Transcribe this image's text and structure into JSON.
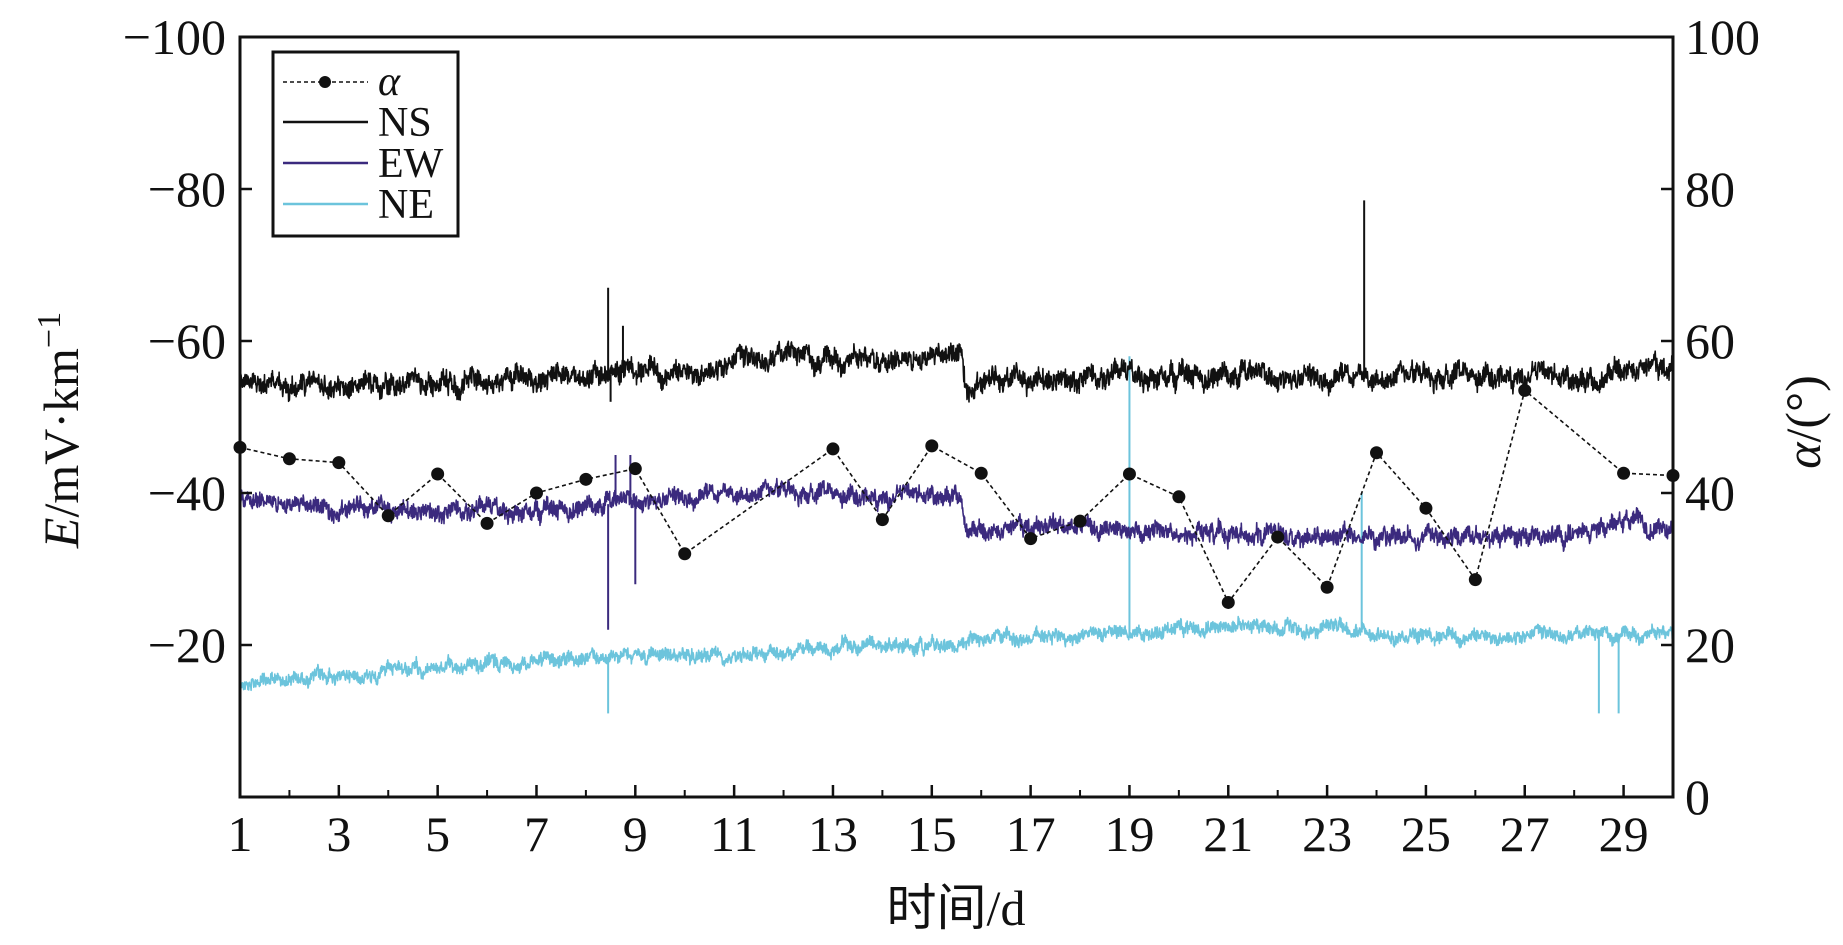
{
  "chart_data": {
    "type": "line",
    "title": "",
    "xlabel": "时间/d",
    "ylabel_left_italic": "E",
    "ylabel_left_rest": "/mV·km",
    "ylabel_left_sup": "−1",
    "ylabel_right_italic": "α",
    "ylabel_right_rest": "/(°)",
    "xlim": [
      1,
      30
    ],
    "ylim_left": [
      -100,
      0
    ],
    "left_axis_inverted": true,
    "ylim_right": [
      0,
      100
    ],
    "x_ticks": [
      1,
      3,
      5,
      7,
      9,
      11,
      13,
      15,
      17,
      19,
      21,
      23,
      25,
      27,
      29
    ],
    "x_tick_labels": [
      "1",
      "3",
      "5",
      "7",
      "9",
      "11",
      "13",
      "15",
      "17",
      "19",
      "21",
      "23",
      "25",
      "27",
      "29"
    ],
    "y_left_ticks": [
      -100,
      -80,
      -60,
      -40,
      -20
    ],
    "y_left_tick_labels": [
      "−100",
      "−80",
      "−60",
      "−40",
      "−20"
    ],
    "y_right_ticks": [
      0,
      20,
      40,
      60,
      80,
      100
    ],
    "y_right_tick_labels": [
      "0",
      "20",
      "40",
      "60",
      "80",
      "100"
    ],
    "grid": false,
    "legend_position": "top-left",
    "series": [
      {
        "name": "α",
        "axis": "right",
        "color": "#111111",
        "marker": "circle",
        "points": [
          [
            1,
            46
          ],
          [
            2,
            44.5
          ],
          [
            3,
            44
          ],
          [
            4,
            37
          ],
          [
            5,
            42.5
          ],
          [
            6,
            36
          ],
          [
            7,
            40
          ],
          [
            8,
            41.8
          ],
          [
            9,
            43.2
          ],
          [
            10,
            32
          ],
          [
            13,
            45.8
          ],
          [
            14,
            36.5
          ],
          [
            15,
            46.2
          ],
          [
            16,
            42.6
          ],
          [
            17,
            34
          ],
          [
            18,
            36.3
          ],
          [
            19,
            42.5
          ],
          [
            20,
            39.5
          ],
          [
            21,
            25.6
          ],
          [
            22,
            34.2
          ],
          [
            23,
            27.6
          ],
          [
            24,
            45.3
          ],
          [
            25,
            38
          ],
          [
            26,
            28.6
          ],
          [
            27,
            53.5
          ],
          [
            29,
            42.6
          ],
          [
            30,
            42.3
          ]
        ]
      },
      {
        "name": "NS",
        "axis": "left",
        "color": "#111111",
        "anchors": [
          [
            1,
            -54.5
          ],
          [
            3,
            -54
          ],
          [
            5,
            -54.5
          ],
          [
            7,
            -55
          ],
          [
            8.4,
            -55.5
          ],
          [
            9,
            -56
          ],
          [
            10,
            -55.5
          ],
          [
            12,
            -58
          ],
          [
            14,
            -57.5
          ],
          [
            15.6,
            -58.5
          ],
          [
            15.7,
            -54.5
          ],
          [
            18,
            -55
          ],
          [
            21,
            -55.5
          ],
          [
            24,
            -55
          ],
          [
            27,
            -55.5
          ],
          [
            28.5,
            -54.5
          ],
          [
            28.9,
            -56.5
          ],
          [
            30,
            -56
          ]
        ],
        "noise": 1.6,
        "spikes": [
          [
            8.45,
            -67
          ],
          [
            8.5,
            -52
          ],
          [
            8.75,
            -62
          ],
          [
            23.75,
            -78.5
          ]
        ]
      },
      {
        "name": "EW",
        "axis": "left",
        "color": "#3b2a7e",
        "anchors": [
          [
            1,
            -39.5
          ],
          [
            3,
            -38
          ],
          [
            5,
            -37.5
          ],
          [
            7,
            -37.5
          ],
          [
            8.4,
            -38.5
          ],
          [
            9,
            -39
          ],
          [
            10,
            -39.5
          ],
          [
            12,
            -40
          ],
          [
            14,
            -39.5
          ],
          [
            15.6,
            -39.5
          ],
          [
            15.7,
            -35
          ],
          [
            18,
            -35.5
          ],
          [
            21,
            -34.5
          ],
          [
            24,
            -34.5
          ],
          [
            27,
            -34
          ],
          [
            28.5,
            -35
          ],
          [
            29,
            -36
          ],
          [
            30,
            -35
          ]
        ],
        "noise": 1.3,
        "spikes": [
          [
            8.45,
            -22
          ],
          [
            8.6,
            -45
          ],
          [
            9,
            -28
          ],
          [
            8.9,
            -45
          ]
        ]
      },
      {
        "name": "NE",
        "axis": "left",
        "color": "#6cc4dc",
        "anchors": [
          [
            1,
            -15
          ],
          [
            3,
            -16
          ],
          [
            5,
            -17
          ],
          [
            7,
            -18
          ],
          [
            9,
            -18.5
          ],
          [
            11,
            -19
          ],
          [
            13,
            -19.5
          ],
          [
            15,
            -20
          ],
          [
            17,
            -21
          ],
          [
            19,
            -21.5
          ],
          [
            21,
            -22.5
          ],
          [
            23,
            -22
          ],
          [
            25,
            -21
          ],
          [
            27,
            -21
          ],
          [
            29,
            -21.5
          ],
          [
            30,
            -21.5
          ]
        ],
        "noise": 1.0,
        "spikes": [
          [
            8.45,
            -11
          ],
          [
            19,
            -58
          ],
          [
            23.7,
            -40
          ],
          [
            28.5,
            -11
          ],
          [
            28.9,
            -11
          ]
        ]
      }
    ]
  }
}
